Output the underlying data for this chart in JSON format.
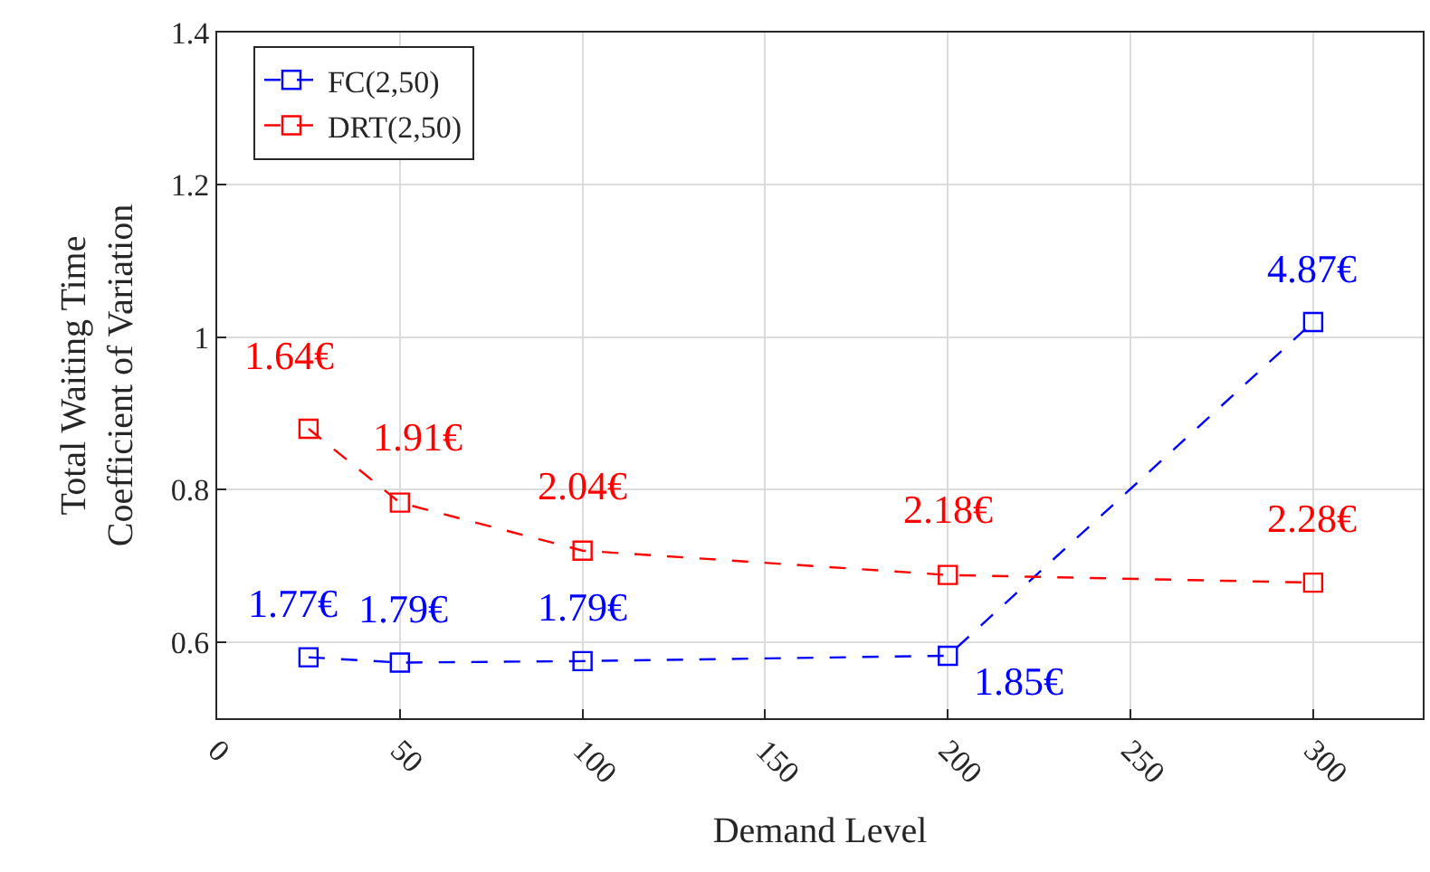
{
  "chart_data": {
    "type": "line",
    "xlabel": "Demand Level",
    "ylabel": "Total Waiting Time\nCoefficient of Variation",
    "x": [
      25,
      50,
      100,
      200,
      300
    ],
    "series": [
      {
        "name": "FC(2,50)",
        "color": "#0000ff",
        "values": [
          0.58,
          0.573,
          0.575,
          0.582,
          1.02
        ]
      },
      {
        "name": "DRT(2,50)",
        "color": "#ff0000",
        "values": [
          0.88,
          0.783,
          0.72,
          0.688,
          0.678
        ]
      }
    ],
    "annotations": [
      {
        "text": "1.77€",
        "x": 25,
        "y": 0.58
      },
      {
        "text": "1.79€",
        "x": 50,
        "y": 0.573
      },
      {
        "text": "1.79€",
        "x": 100,
        "y": 0.575
      },
      {
        "text": "1.85€",
        "x": 200,
        "y": 0.582
      },
      {
        "text": "4.87€",
        "x": 300,
        "y": 1.02
      },
      {
        "text": "1.64€",
        "x": 25,
        "y": 0.88
      },
      {
        "text": "1.91€",
        "x": 50,
        "y": 0.783
      },
      {
        "text": "2.04€",
        "x": 100,
        "y": 0.72
      },
      {
        "text": "2.18€",
        "x": 200,
        "y": 0.688
      },
      {
        "text": "2.28€",
        "x": 300,
        "y": 0.678
      }
    ],
    "xlim": [
      0,
      330
    ],
    "xticks": [
      0,
      50,
      100,
      150,
      200,
      250,
      300
    ],
    "ylim": [
      0.5,
      1.4
    ],
    "yticks": [
      0.6,
      0.8,
      1,
      1.2,
      1.4
    ],
    "grid": true,
    "legend": "top left",
    "marker": "square",
    "line_style": "dashed"
  }
}
